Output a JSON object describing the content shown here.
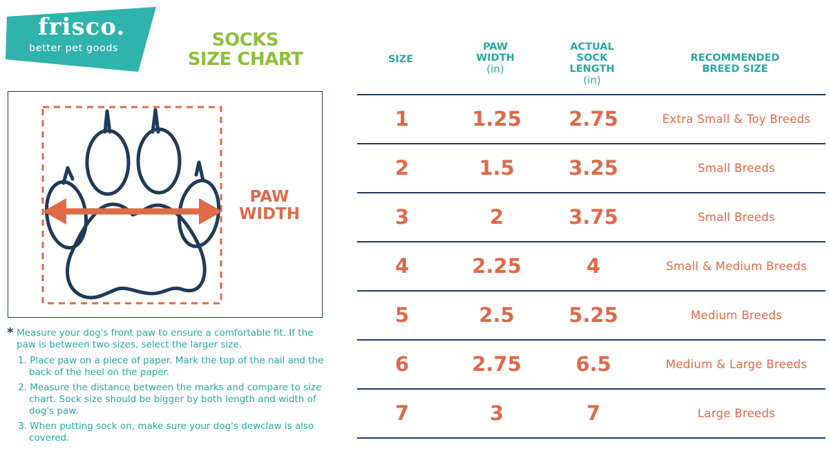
{
  "brand": {
    "name": "frisco.",
    "tagline": "better pet goods",
    "teal": "#2fb3ad"
  },
  "title": [
    "SOCKS",
    "SIZE CHART"
  ],
  "diagram": {
    "label": [
      "PAW",
      "WIDTH"
    ],
    "icon": "paw-outline-with-width-arrow"
  },
  "notes": {
    "intro": "Measure your dog's front paw to ensure a comfortable fit. If the paw is between two sizes, select the larger size.",
    "steps": [
      "1. Place paw on a piece of paper. Mark the top of the nail and the back of the heel on the paper.",
      "2. Measure the distance between the marks and compare to size chart. Sock size should be bigger by both length and width of dog's paw.",
      "3. When putting sock on, make sure your dog's dewclaw is also covered."
    ]
  },
  "table": {
    "headers": {
      "size": "SIZE",
      "paw_width": [
        "PAW",
        "WIDTH"
      ],
      "paw_width_unit": "(in)",
      "sock_length": [
        "ACTUAL",
        "SOCK",
        "LENGTH"
      ],
      "sock_length_unit": "(in)",
      "breed": [
        "RECOMMENDED",
        "BREED SIZE"
      ]
    },
    "rows": [
      {
        "size": "1",
        "paw_width": "1.25",
        "sock_length": "2.75",
        "breed": "Extra Small & Toy Breeds"
      },
      {
        "size": "2",
        "paw_width": "1.5",
        "sock_length": "3.25",
        "breed": "Small Breeds"
      },
      {
        "size": "3",
        "paw_width": "2",
        "sock_length": "3.75",
        "breed": "Small Breeds"
      },
      {
        "size": "4",
        "paw_width": "2.25",
        "sock_length": "4",
        "breed": "Small & Medium Breeds"
      },
      {
        "size": "5",
        "paw_width": "2.5",
        "sock_length": "5.25",
        "breed": "Medium Breeds"
      },
      {
        "size": "6",
        "paw_width": "2.75",
        "sock_length": "6.5",
        "breed": "Medium & Large Breeds"
      },
      {
        "size": "7",
        "paw_width": "3",
        "sock_length": "7",
        "breed": "Large Breeds"
      }
    ]
  },
  "colors": {
    "accent_orange": "#e06a48",
    "title_green": "#8dbf3d",
    "teal_text": "#27a9a5",
    "navy": "#1f3b5a"
  }
}
